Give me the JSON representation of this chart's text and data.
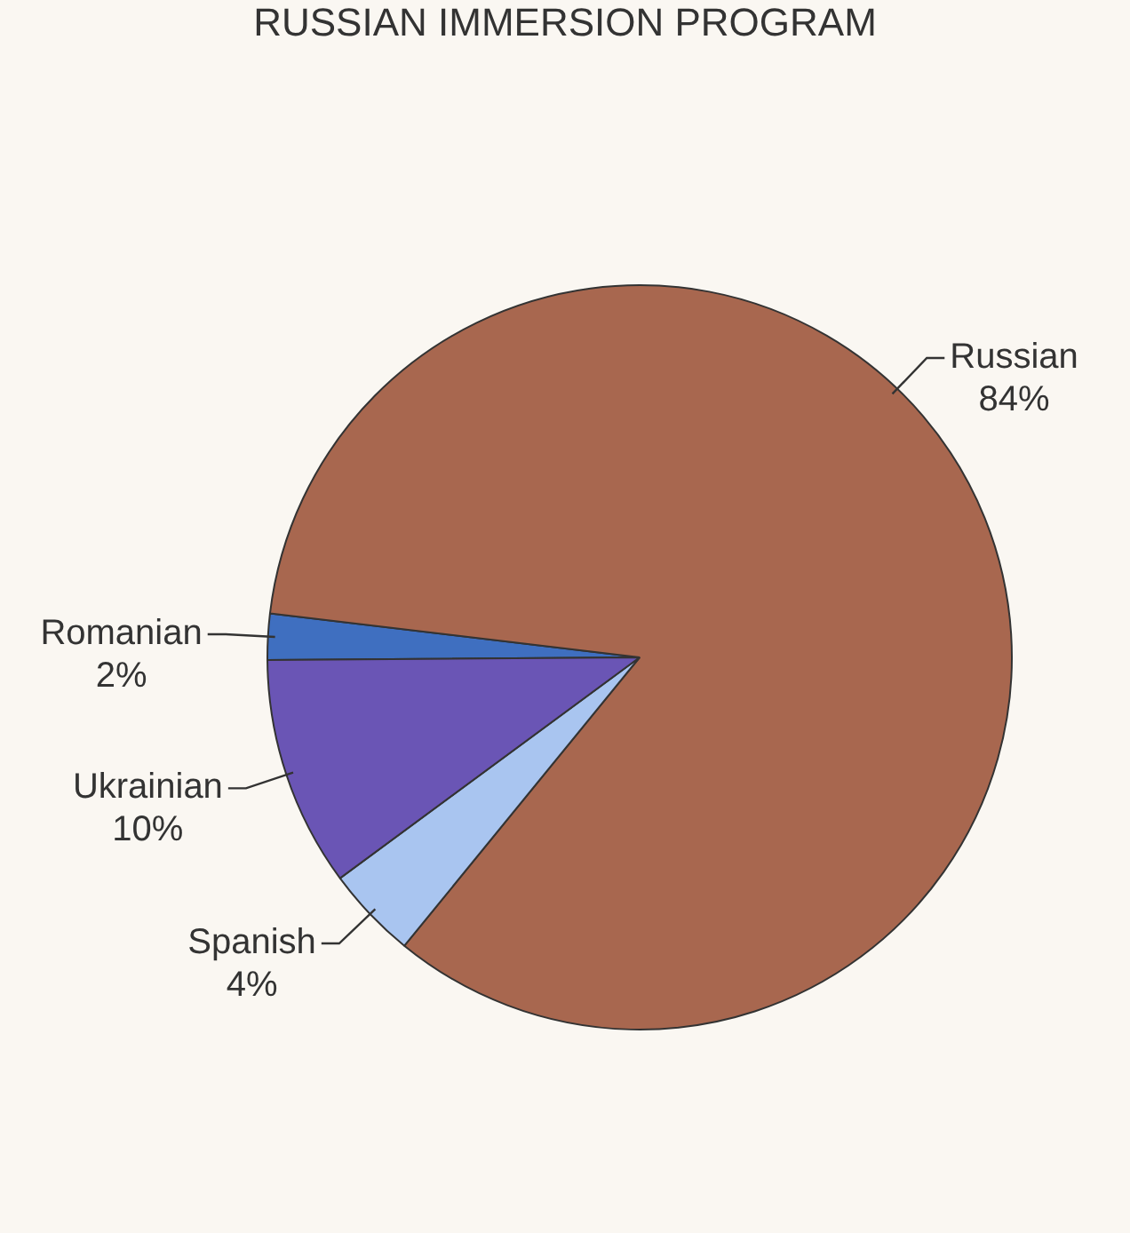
{
  "chart_data": {
    "type": "pie",
    "title": "RUSSIAN IMMERSION PROGRAM",
    "categories": [
      "Romanian",
      "Russian",
      "Spanish",
      "Ukrainian"
    ],
    "values": [
      2,
      84,
      4,
      10
    ],
    "colors": [
      "#3f6fc0",
      "#a8674f",
      "#a9c5f0",
      "#6a55b5"
    ],
    "value_labels": [
      "2%",
      "84%",
      "4%",
      "10%"
    ]
  }
}
